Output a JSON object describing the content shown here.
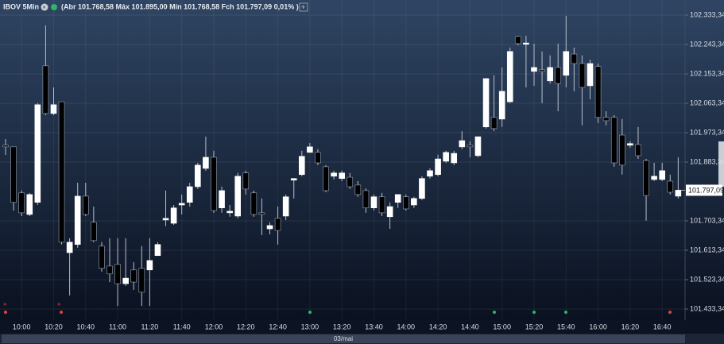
{
  "chart_data": {
    "type": "candlestick",
    "symbol": "IBOV 5Min",
    "summary": "(Abr 101.768,58 Máx 101.895,00 Mín 101.768,58 Fch 101.797,09 0,01% )",
    "date_label": "03/mai",
    "last_price": 101797.09,
    "last_price_label": "101.797,09",
    "up_color": "#ffffff",
    "down_color": "#000000",
    "wick_color": "#b8c0cc",
    "grid": true,
    "categories": [
      null,
      null,
      "10:00",
      null,
      null,
      null,
      "10:20",
      null,
      null,
      null,
      "10:40",
      null,
      null,
      null,
      "11:00",
      null,
      null,
      null,
      "11:20",
      null,
      null,
      null,
      "11:40",
      null,
      null,
      null,
      "12:00",
      null,
      null,
      null,
      "12:20",
      null,
      null,
      null,
      "12:40",
      null,
      null,
      null,
      "13:00",
      null,
      null,
      null,
      "13:20",
      null,
      null,
      null,
      "13:40",
      null,
      null,
      null,
      "14:00",
      null,
      null,
      null,
      "14:20",
      null,
      null,
      null,
      "14:40",
      null,
      null,
      null,
      "15:00",
      null,
      null,
      null,
      "15:20",
      null,
      null,
      null,
      "15:40",
      null,
      null,
      null,
      "16:00",
      null,
      null,
      null,
      "16:20",
      null,
      null,
      null,
      "16:40",
      null,
      null
    ],
    "open": [
      101935,
      101930,
      101789,
      101723,
      101760,
      102178,
      102032,
      102068,
      101606,
      101631,
      101779,
      101699,
      101626,
      101565,
      101570,
      101511,
      101553,
      101558,
      101553,
      101597,
      101706,
      101696,
      101752,
      101760,
      101808,
      101864,
      101898,
      101743,
      101728,
      101718,
      101850,
      101789,
      101728,
      101679,
      101711,
      101718,
      101828,
      101845,
      101913,
      101913,
      101869,
      101840,
      101833,
      101837,
      101813,
      101796,
      101743,
      101777,
      101716,
      101760,
      101777,
      101752,
      101772,
      101840,
      101845,
      101886,
      101881,
      101930,
      101935,
      101903,
      101991,
      102020,
      102015,
      102068,
      102268,
      102244,
      102161,
      102166,
      102132,
      102173,
      102149,
      102214,
      102185,
      102117,
      102176,
      102020,
      102020,
      101966,
      101935,
      101937,
      101888,
      101830,
      101830,
      101825,
      101779
    ],
    "high": [
      101954,
      101930,
      101796,
      101789,
      102064,
      102302,
      102112,
      102068,
      101650,
      101820,
      101820,
      101747,
      101638,
      101650,
      101650,
      101650,
      101577,
      101626,
      101650,
      101638,
      101796,
      101752,
      101784,
      101820,
      101881,
      101961,
      101918,
      101808,
      101752,
      101850,
      101857,
      101796,
      101772,
      101699,
      101747,
      101784,
      101833,
      101918,
      101942,
      101923,
      101874,
      101857,
      101857,
      101850,
      101825,
      101803,
      101784,
      101789,
      101760,
      101784,
      101784,
      101777,
      101840,
      101864,
      101906,
      101918,
      101918,
      101978,
      101947,
      101961,
      102139,
      102149,
      102173,
      102234,
      102270,
      102270,
      102246,
      102222,
      102210,
      102246,
      102331,
      102234,
      102210,
      102197,
      102185,
      102039,
      102027,
      102015,
      101947,
      101991,
      101893,
      101881,
      101881,
      101845,
      101898
    ],
    "low": [
      101905,
      101735,
      101718,
      101718,
      101752,
      102027,
      102027,
      101631,
      101475,
      101621,
      101718,
      101638,
      101548,
      101516,
      101443,
      101504,
      101492,
      101443,
      101443,
      101597,
      101687,
      101691,
      101723,
      101747,
      101801,
      101857,
      101728,
      101728,
      101716,
      101711,
      101784,
      101716,
      101660,
      101662,
      101631,
      101706,
      101772,
      101840,
      101913,
      101874,
      101791,
      101830,
      101825,
      101801,
      101777,
      101728,
      101735,
      101718,
      101679,
      101743,
      101735,
      101743,
      101767,
      101833,
      101840,
      101881,
      101874,
      101923,
      101898,
      101898,
      101986,
      101978,
      101991,
      102064,
      102241,
      102112,
      102117,
      102064,
      102124,
      102039,
      102112,
      102100,
      101996,
      102076,
      102003,
      101996,
      101869,
      101845,
      101927,
      101893,
      101704,
      101825,
      101825,
      101784,
      101772
    ],
    "close": [
      101930,
      101760,
      101728,
      101784,
      102059,
      102032,
      102059,
      101638,
      101638,
      101779,
      101723,
      101643,
      101558,
      101541,
      101511,
      101528,
      101516,
      101485,
      101582,
      101631,
      101711,
      101743,
      101757,
      101808,
      101874,
      101898,
      101735,
      101796,
      101733,
      101840,
      101801,
      101723,
      101723,
      101689,
      101674,
      101777,
      101833,
      101901,
      101930,
      101881,
      101796,
      101850,
      101850,
      101808,
      101784,
      101743,
      101777,
      101728,
      101747,
      101784,
      101740,
      101772,
      101833,
      101857,
      101893,
      101913,
      101910,
      101949,
      101930,
      101961,
      102139,
      101986,
      102100,
      102222,
      102246,
      102248,
      102173,
      102161,
      102173,
      102124,
      102222,
      102185,
      102112,
      102185,
      102020,
      102010,
      101881,
      101874,
      101940,
      101903,
      101781,
      101840,
      101857,
      101791,
      101797.09
    ],
    "ylim": [
      101399.3,
      102379.6
    ],
    "yticks": [
      {
        "value": 102333.34,
        "label": "102.333,34"
      },
      {
        "value": 102243.34,
        "label": "102.243,34"
      },
      {
        "value": 102153.34,
        "label": "102.153,34"
      },
      {
        "value": 102063.34,
        "label": "102.063,34"
      },
      {
        "value": 101973.34,
        "label": "101.973,34"
      },
      {
        "value": 101883.34,
        "label": "101.883,34"
      },
      {
        "value": 101703.34,
        "label": "101.703,34"
      },
      {
        "value": 101613.34,
        "label": "101.613,34"
      },
      {
        "value": 101523.34,
        "label": "101.523,34"
      },
      {
        "value": 101433.34,
        "label": "101.433,34"
      }
    ]
  }
}
